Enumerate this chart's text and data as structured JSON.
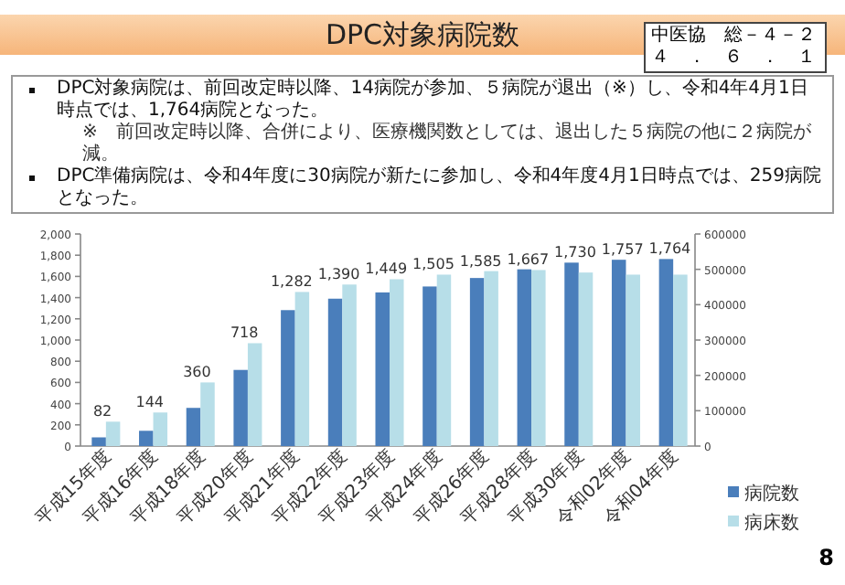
{
  "chart_data": {
    "type": "bar",
    "title": "DPC対象病院数",
    "annotations": [
      "中医協　総－４－２",
      "４　．　６　．　１",
      "DPC対象病院は、前回改定時以降、14病院が参加、５病院が退出（※）し、令和4年4月1日時点では、1,764病院となった。",
      "※　前回改定時以降、合併により、医療機関数としては、退出した５病院の他に２病院が減。",
      "DPC準備病院は、令和4年度に30病院が新たに参加し、令和4年度4月1日時点では、259病院となった。",
      "8"
    ],
    "categories": [
      "平成15年度",
      "平成16年度",
      "平成18年度",
      "平成20年度",
      "平成21年度",
      "平成22年度",
      "平成23年度",
      "平成24年度",
      "平成26年度",
      "平成28年度",
      "平成30年度",
      "令和02年度",
      "令和04年度"
    ],
    "series": [
      {
        "name": "病院数",
        "color": "#4a7ebb",
        "values": [
          82,
          144,
          360,
          718,
          1282,
          1390,
          1449,
          1505,
          1585,
          1667,
          1730,
          1757,
          1764
        ],
        "value_labels": [
          "82",
          "144",
          "360",
          "718",
          "1,282",
          "1,390",
          "1,449",
          "1,505",
          "1,585",
          "1,667",
          "1,730",
          "1,757",
          "1,764"
        ]
      },
      {
        "name": "病床数",
        "color": "#b7dee8",
        "axis": "y2",
        "values": [
          69000,
          95000,
          180000,
          291000,
          436000,
          457000,
          472000,
          485000,
          495000,
          498000,
          491000,
          485000,
          485000
        ]
      }
    ],
    "ylim": [
      0,
      2000
    ],
    "yticks": [
      0,
      {
        "value": 200,
        "label": "200"
      },
      {
        "value": 400,
        "label": "400"
      },
      {
        "value": 600,
        "label": "600"
      },
      {
        "value": 800,
        "label": "800"
      },
      {
        "value": 1000,
        "label": "1,000"
      },
      {
        "value": 1200,
        "label": "1,200"
      },
      {
        "value": 1400,
        "label": "1,400"
      },
      {
        "value": 1600,
        "label": "1,600"
      },
      {
        "value": 1800,
        "label": "1,800"
      },
      {
        "value": 2000,
        "label": "2,000"
      }
    ],
    "y2lim": [
      0,
      600000
    ],
    "y2ticks": [
      0,
      100000,
      200000,
      300000,
      400000,
      500000,
      600000
    ],
    "legend": "bottom right"
  }
}
